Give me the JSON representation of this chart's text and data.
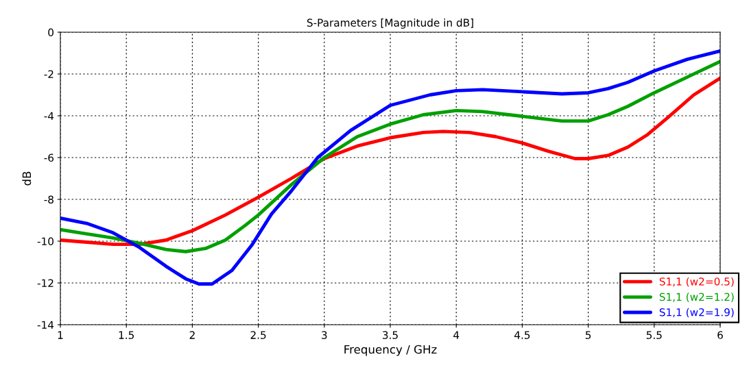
{
  "chart_data": {
    "type": "line",
    "title": "S-Parameters [Magnitude in dB]",
    "xlabel": "Frequency / GHz",
    "ylabel": "dB",
    "xlim": [
      1,
      6
    ],
    "xticks": [
      1,
      1.5,
      2,
      2.5,
      3,
      3.5,
      4,
      4.5,
      5,
      5.5,
      6
    ],
    "ylim": [
      -14,
      0
    ],
    "yticks": [
      -14,
      -12,
      -10,
      -8,
      -6,
      -4,
      -2,
      0
    ],
    "grid": true,
    "legend": "bottom right",
    "line_style": "solid",
    "marker": "none",
    "series": [
      {
        "name": "S1,1 (w2=0.5)",
        "color": "#ff0000",
        "x": [
          1,
          1.2,
          1.4,
          1.6,
          1.8,
          2,
          2.25,
          2.5,
          2.75,
          3,
          3.25,
          3.5,
          3.75,
          3.9,
          4.1,
          4.3,
          4.5,
          4.7,
          4.9,
          5,
          5.15,
          5.3,
          5.45,
          5.6,
          5.8,
          6
        ],
        "values": [
          -9.95,
          -10.05,
          -10.15,
          -10.15,
          -9.95,
          -9.5,
          -8.75,
          -7.9,
          -7,
          -6.05,
          -5.45,
          -5.05,
          -4.8,
          -4.75,
          -4.8,
          -5.0,
          -5.3,
          -5.7,
          -6.05,
          -6.05,
          -5.9,
          -5.5,
          -4.9,
          -4.1,
          -3.0,
          -2.2
        ]
      },
      {
        "name": "S1,1 (w2=1.2)",
        "color": "#00a000",
        "x": [
          1,
          1.2,
          1.4,
          1.6,
          1.8,
          1.95,
          2.1,
          2.25,
          2.4,
          2.5,
          2.75,
          3,
          3.25,
          3.5,
          3.75,
          4,
          4.2,
          4.4,
          4.6,
          4.8,
          5,
          5.15,
          5.3,
          5.5,
          5.75,
          6
        ],
        "values": [
          -9.45,
          -9.65,
          -9.85,
          -10.1,
          -10.4,
          -10.5,
          -10.35,
          -9.95,
          -9.25,
          -8.75,
          -7.3,
          -6.0,
          -5.0,
          -4.4,
          -3.95,
          -3.75,
          -3.8,
          -3.95,
          -4.1,
          -4.25,
          -4.25,
          -3.95,
          -3.55,
          -2.9,
          -2.15,
          -1.4
        ]
      },
      {
        "name": "S1,1 (w2=1.9)",
        "color": "#0000ff",
        "x": [
          1,
          1.2,
          1.4,
          1.6,
          1.8,
          1.95,
          2.05,
          2.15,
          2.3,
          2.45,
          2.6,
          2.75,
          2.95,
          3.2,
          3.5,
          3.8,
          4,
          4.2,
          4.5,
          4.8,
          5,
          5.15,
          5.3,
          5.5,
          5.75,
          6
        ],
        "values": [
          -8.9,
          -9.15,
          -9.6,
          -10.3,
          -11.2,
          -11.8,
          -12.05,
          -12.05,
          -11.4,
          -10.2,
          -8.7,
          -7.6,
          -6.0,
          -4.7,
          -3.5,
          -3.0,
          -2.8,
          -2.75,
          -2.85,
          -2.95,
          -2.9,
          -2.7,
          -2.4,
          -1.85,
          -1.3,
          -0.9
        ]
      }
    ]
  }
}
